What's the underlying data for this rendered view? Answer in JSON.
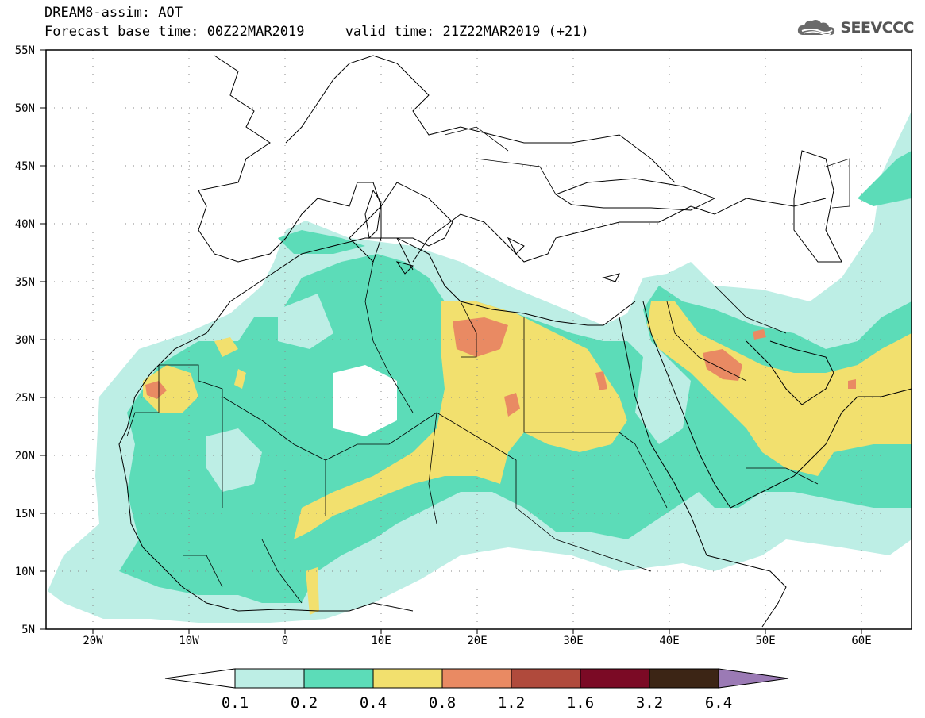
{
  "header": {
    "title_line1": "DREAM8-assim: AOT",
    "title_line2": "Forecast base time: 00Z22MAR2019     valid time: 21Z22MAR2019 (+21)"
  },
  "logo": {
    "text": "SEEVCCC",
    "icon": "cloud-icon"
  },
  "map": {
    "lat_labels": [
      "55N",
      "50N",
      "45N",
      "40N",
      "35N",
      "30N",
      "25N",
      "20N",
      "15N",
      "10N",
      "5N"
    ],
    "lon_labels": [
      "20W",
      "10W",
      "0",
      "10E",
      "20E",
      "30E",
      "40E",
      "50E",
      "60E"
    ],
    "lat_range": [
      5,
      55
    ],
    "lon_range": [
      -25,
      65
    ],
    "grid": "dotted"
  },
  "colorbar": {
    "labels": [
      "0.1",
      "0.2",
      "0.4",
      "0.8",
      "1.2",
      "1.6",
      "3.2",
      "6.4"
    ],
    "colors": [
      "#ffffff",
      "#bdeee5",
      "#5cdcb8",
      "#f2e06e",
      "#e98a63",
      "#b04a3c",
      "#7b0a25",
      "#3c2515",
      "#9b7ab5"
    ]
  }
}
